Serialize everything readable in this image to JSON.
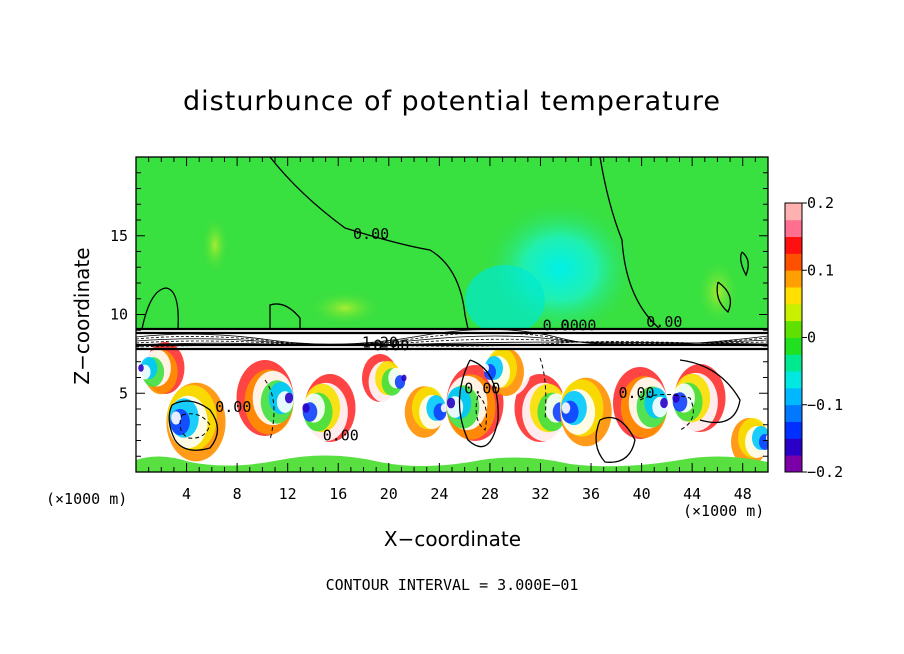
{
  "chart_data": {
    "type": "heatmap",
    "title": "disturbunce of potential temperature",
    "xlabel": "X−coordinate",
    "ylabel": "Z−coordinate",
    "x_unit_left": "(×1000 m)",
    "x_unit_right": "(×1000 m)",
    "contour_note": "CONTOUR INTERVAL = 3.000E−01",
    "xlim": [
      0,
      50
    ],
    "ylim": [
      0,
      20
    ],
    "x_ticks": [
      4,
      8,
      12,
      16,
      20,
      24,
      28,
      32,
      36,
      40,
      44,
      48
    ],
    "y_ticks": [
      5,
      10,
      15
    ],
    "colorbar": {
      "range": [
        -0.2,
        0.2
      ],
      "tick_labels": [
        {
          "value": 0.2,
          "label": "0.2"
        },
        {
          "value": 0.1,
          "label": "0.1"
        },
        {
          "value": 0,
          "label": "0"
        },
        {
          "value": -0.1,
          "label": "−0.1"
        },
        {
          "value": -0.2,
          "label": "−0.2"
        }
      ],
      "colors": [
        "#7b00a8",
        "#2a00c8",
        "#0030ff",
        "#0078ff",
        "#00b8ff",
        "#00e8e0",
        "#00e890",
        "#20e020",
        "#60e000",
        "#c8f000",
        "#ffe000",
        "#ffa000",
        "#ff5000",
        "#ff1010",
        "#ff7090",
        "#ffb0b0"
      ]
    },
    "contour_labels": [
      {
        "x": 18.6,
        "z": 14.8,
        "label": "0.00"
      },
      {
        "x": 19.3,
        "z": 7.9,
        "label": "1.20"
      },
      {
        "x": 20.2,
        "z": 7.7,
        "label": "0.00"
      },
      {
        "x": 33.6,
        "z": 9.0,
        "label": "0.00"
      },
      {
        "x": 35.0,
        "z": 9.0,
        "label": "0.00"
      },
      {
        "x": 41.8,
        "z": 9.2,
        "label": "0.00"
      },
      {
        "x": 27.4,
        "z": 5.0,
        "label": "0.00"
      },
      {
        "x": 7.7,
        "z": 3.8,
        "label": "0.00"
      },
      {
        "x": 16.2,
        "z": 2.0,
        "label": "0.00"
      },
      {
        "x": 39.6,
        "z": 4.7,
        "label": "0.00"
      }
    ],
    "grid": false
  }
}
